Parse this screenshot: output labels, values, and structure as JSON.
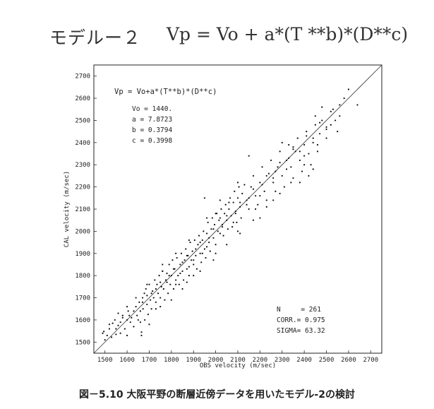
{
  "heading": {
    "model_label": "モデルー２",
    "formula": "Vp = Vo + a*(T **b)*(D**c)"
  },
  "caption": "図－5.10  大阪平野の断層近傍データを用いたモデル-2の検討",
  "chart_data": {
    "type": "scatter",
    "xlabel": "OBS velocity (m/sec)",
    "ylabel": "CAL velocity (m/sec)",
    "xlim": [
      1450,
      2750
    ],
    "ylim": [
      1450,
      2750
    ],
    "x_ticks": [
      1500,
      1600,
      1700,
      1800,
      1900,
      2000,
      2100,
      2200,
      2300,
      2400,
      2500,
      2600,
      2700
    ],
    "y_ticks": [
      1500,
      1600,
      1700,
      1800,
      1900,
      2000,
      2100,
      2200,
      2300,
      2400,
      2500,
      2600,
      2700
    ],
    "grid": false,
    "reference_line": "y = x",
    "formula_label": "Vp = Vo+a*(T**b)*(D**c)",
    "params": [
      "Vo = 1440.",
      "a = 7.8723",
      "b = 0.3794",
      "c = 0.3998"
    ],
    "stats": [
      "N     = 261",
      "CORR.= 0.975",
      "SIGMA= 63.32"
    ],
    "points": [
      [
        1490,
        1540
      ],
      [
        1495,
        1548
      ],
      [
        1510,
        1530
      ],
      [
        1520,
        1560
      ],
      [
        1530,
        1522
      ],
      [
        1535,
        1585
      ],
      [
        1545,
        1600
      ],
      [
        1550,
        1535
      ],
      [
        1560,
        1575
      ],
      [
        1570,
        1540
      ],
      [
        1580,
        1620
      ],
      [
        1590,
        1560
      ],
      [
        1600,
        1530
      ],
      [
        1605,
        1640
      ],
      [
        1615,
        1590
      ],
      [
        1620,
        1610
      ],
      [
        1630,
        1570
      ],
      [
        1640,
        1660
      ],
      [
        1645,
        1620
      ],
      [
        1650,
        1600
      ],
      [
        1655,
        1680
      ],
      [
        1660,
        1640
      ],
      [
        1665,
        1545
      ],
      [
        1670,
        1700
      ],
      [
        1672,
        1650
      ],
      [
        1678,
        1720
      ],
      [
        1680,
        1600
      ],
      [
        1685,
        1740
      ],
      [
        1690,
        1670
      ],
      [
        1695,
        1625
      ],
      [
        1700,
        1760
      ],
      [
        1705,
        1690
      ],
      [
        1710,
        1650
      ],
      [
        1715,
        1730
      ],
      [
        1720,
        1700
      ],
      [
        1725,
        1780
      ],
      [
        1730,
        1680
      ],
      [
        1735,
        1760
      ],
      [
        1740,
        1720
      ],
      [
        1745,
        1800
      ],
      [
        1750,
        1700
      ],
      [
        1755,
        1750
      ],
      [
        1760,
        1820
      ],
      [
        1765,
        1740
      ],
      [
        1770,
        1690
      ],
      [
        1775,
        1780
      ],
      [
        1780,
        1810
      ],
      [
        1785,
        1720
      ],
      [
        1790,
        1850
      ],
      [
        1795,
        1760
      ],
      [
        1800,
        1800
      ],
      [
        1805,
        1870
      ],
      [
        1810,
        1740
      ],
      [
        1815,
        1830
      ],
      [
        1820,
        1780
      ],
      [
        1825,
        1880
      ],
      [
        1830,
        1800
      ],
      [
        1835,
        1760
      ],
      [
        1840,
        1850
      ],
      [
        1845,
        1900
      ],
      [
        1850,
        1820
      ],
      [
        1855,
        1780
      ],
      [
        1860,
        1870
      ],
      [
        1865,
        1920
      ],
      [
        1870,
        1830
      ],
      [
        1875,
        1890
      ],
      [
        1880,
        1800
      ],
      [
        1885,
        1950
      ],
      [
        1890,
        1870
      ],
      [
        1895,
        1910
      ],
      [
        1900,
        1850
      ],
      [
        1905,
        1960
      ],
      [
        1910,
        1890
      ],
      [
        1915,
        1830
      ],
      [
        1920,
        1940
      ],
      [
        1925,
        1980
      ],
      [
        1930,
        1900
      ],
      [
        1935,
        1860
      ],
      [
        1940,
        1960
      ],
      [
        1945,
        2000
      ],
      [
        1950,
        1920
      ],
      [
        1955,
        1880
      ],
      [
        1960,
        1990
      ],
      [
        1965,
        2040
      ],
      [
        1970,
        1950
      ],
      [
        1975,
        1910
      ],
      [
        1980,
        2010
      ],
      [
        1985,
        2060
      ],
      [
        1990,
        1970
      ],
      [
        1995,
        2030
      ],
      [
        2000,
        1940
      ],
      [
        2005,
        2080
      ],
      [
        2010,
        2000
      ],
      [
        2015,
        2050
      ],
      [
        2020,
        1990
      ],
      [
        2025,
        2100
      ],
      [
        2030,
        2030
      ],
      [
        2035,
        1980
      ],
      [
        2040,
        2080
      ],
      [
        2045,
        2120
      ],
      [
        2050,
        2050
      ],
      [
        2055,
        2010
      ],
      [
        2060,
        2100
      ],
      [
        2065,
        2150
      ],
      [
        2070,
        2070
      ],
      [
        2075,
        2020
      ],
      [
        2080,
        2130
      ],
      [
        2085,
        2180
      ],
      [
        2090,
        2090
      ],
      [
        2095,
        2040
      ],
      [
        2100,
        2150
      ],
      [
        2105,
        2200
      ],
      [
        2110,
        2110
      ],
      [
        2115,
        2060
      ],
      [
        2120,
        2170
      ],
      [
        2130,
        2210
      ],
      [
        2140,
        2140
      ],
      [
        2150,
        2100
      ],
      [
        2160,
        2200
      ],
      [
        2170,
        2250
      ],
      [
        2180,
        2160
      ],
      [
        2190,
        2120
      ],
      [
        2200,
        2220
      ],
      [
        2210,
        2290
      ],
      [
        2220,
        2180
      ],
      [
        2230,
        2140
      ],
      [
        2240,
        2260
      ],
      [
        2250,
        2320
      ],
      [
        2260,
        2220
      ],
      [
        2270,
        2180
      ],
      [
        2280,
        2290
      ],
      [
        2290,
        2360
      ],
      [
        2300,
        2250
      ],
      [
        2310,
        2200
      ],
      [
        2320,
        2320
      ],
      [
        2330,
        2390
      ],
      [
        2340,
        2290
      ],
      [
        2350,
        2240
      ],
      [
        2360,
        2360
      ],
      [
        2370,
        2420
      ],
      [
        2380,
        2320
      ],
      [
        2390,
        2270
      ],
      [
        2400,
        2390
      ],
      [
        2410,
        2450
      ],
      [
        2420,
        2350
      ],
      [
        2430,
        2300
      ],
      [
        2440,
        2420
      ],
      [
        2450,
        2480
      ],
      [
        2460,
        2390
      ],
      [
        2470,
        2440
      ],
      [
        2480,
        2500
      ],
      [
        2500,
        2470
      ],
      [
        2520,
        2540
      ],
      [
        2540,
        2500
      ],
      [
        2560,
        2570
      ],
      [
        2580,
        2600
      ],
      [
        2600,
        2640
      ],
      [
        2640,
        2570
      ],
      [
        2480,
        2560
      ],
      [
        2450,
        2520
      ],
      [
        2150,
        2340
      ],
      [
        2060,
        2130
      ],
      [
        1950,
        2150
      ],
      [
        2200,
        2060
      ],
      [
        2300,
        2400
      ],
      [
        2350,
        2380
      ],
      [
        2400,
        2340
      ],
      [
        2420,
        2250
      ],
      [
        1700,
        1580
      ],
      [
        1600,
        1660
      ],
      [
        1580,
        1610
      ],
      [
        1750,
        1660
      ],
      [
        1850,
        1740
      ],
      [
        1900,
        1800
      ],
      [
        2000,
        1900
      ],
      [
        2100,
        2000
      ],
      [
        2180,
        2100
      ],
      [
        2260,
        2140
      ],
      [
        2340,
        2220
      ],
      [
        2100,
        2220
      ],
      [
        2020,
        2140
      ],
      [
        1960,
        2060
      ],
      [
        1880,
        1960
      ],
      [
        1820,
        1900
      ],
      [
        1760,
        1820
      ],
      [
        1690,
        1760
      ],
      [
        1640,
        1700
      ],
      [
        1560,
        1630
      ],
      [
        1520,
        1580
      ],
      [
        1600,
        1600
      ],
      [
        1660,
        1590
      ],
      [
        1730,
        1650
      ],
      [
        1800,
        1690
      ],
      [
        1870,
        1770
      ],
      [
        1930,
        1820
      ],
      [
        1990,
        1870
      ],
      [
        2050,
        1940
      ],
      [
        2110,
        1990
      ],
      [
        2170,
        2050
      ],
      [
        2230,
        2110
      ],
      [
        2290,
        2170
      ],
      [
        2380,
        2220
      ],
      [
        2440,
        2280
      ],
      [
        2500,
        2420
      ],
      [
        2520,
        2480
      ],
      [
        2550,
        2450
      ],
      [
        2460,
        2360
      ],
      [
        2400,
        2300
      ],
      [
        2330,
        2330
      ],
      [
        2270,
        2270
      ],
      [
        2210,
        2210
      ],
      [
        2150,
        2150
      ],
      [
        2090,
        2080
      ],
      [
        2030,
        2020
      ],
      [
        1970,
        1970
      ],
      [
        1910,
        1920
      ],
      [
        1850,
        1860
      ],
      [
        1790,
        1800
      ],
      [
        1730,
        1740
      ],
      [
        1670,
        1680
      ],
      [
        1610,
        1620
      ],
      [
        1550,
        1560
      ],
      [
        1500,
        1510
      ],
      [
        1570,
        1590
      ],
      [
        1630,
        1640
      ],
      [
        1690,
        1710
      ],
      [
        1750,
        1770
      ],
      [
        1810,
        1830
      ],
      [
        1870,
        1890
      ],
      [
        1930,
        1950
      ],
      [
        1990,
        2010
      ],
      [
        2050,
        2070
      ],
      [
        2110,
        2130
      ],
      [
        2170,
        2190
      ],
      [
        2230,
        2250
      ],
      [
        2290,
        2310
      ],
      [
        2350,
        2370
      ],
      [
        2410,
        2430
      ],
      [
        2470,
        2490
      ],
      [
        2530,
        2550
      ],
      [
        1665,
        1530
      ],
      [
        1710,
        1720
      ],
      [
        1780,
        1770
      ],
      [
        1840,
        1810
      ],
      [
        1900,
        1870
      ],
      [
        1960,
        1930
      ],
      [
        2020,
        2060
      ],
      [
        2080,
        2040
      ],
      [
        2140,
        2120
      ],
      [
        2200,
        2160
      ],
      [
        2260,
        2240
      ],
      [
        2320,
        2280
      ],
      [
        2380,
        2360
      ],
      [
        2440,
        2400
      ],
      [
        2500,
        2460
      ],
      [
        2560,
        2520
      ],
      [
        1760,
        1850
      ],
      [
        1820,
        1760
      ],
      [
        1880,
        1840
      ],
      [
        1940,
        1900
      ],
      [
        2000,
        2080
      ]
    ]
  }
}
